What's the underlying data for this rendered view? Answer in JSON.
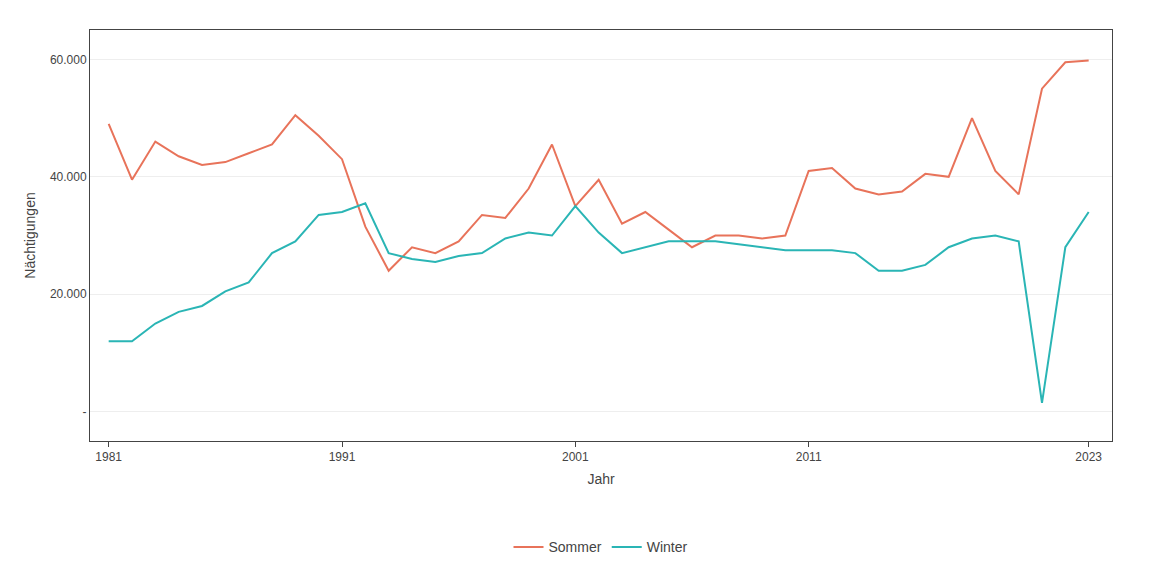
{
  "chart_data": {
    "type": "line",
    "xlabel": "Jahr",
    "ylabel": "Nächtigungen",
    "x": [
      1981,
      1982,
      1983,
      1984,
      1985,
      1986,
      1987,
      1988,
      1989,
      1990,
      1991,
      1992,
      1993,
      1994,
      1995,
      1996,
      1997,
      1998,
      1999,
      2000,
      2001,
      2002,
      2003,
      2004,
      2005,
      2006,
      2007,
      2008,
      2009,
      2010,
      2011,
      2012,
      2013,
      2014,
      2015,
      2016,
      2017,
      2018,
      2019,
      2020,
      2021,
      2022,
      2023
    ],
    "series": [
      {
        "name": "Sommer",
        "color": "#E8735A",
        "values": [
          49000,
          39500,
          46000,
          43500,
          42000,
          42500,
          44000,
          45500,
          50500,
          47000,
          43000,
          31500,
          24000,
          28000,
          27000,
          29000,
          33500,
          33000,
          38000,
          45500,
          35000,
          39500,
          32000,
          34000,
          31000,
          28000,
          30000,
          30000,
          29500,
          30000,
          41000,
          41500,
          38000,
          37000,
          37500,
          40500,
          40000,
          50000,
          41000,
          37000,
          55000,
          59500,
          59800
        ]
      },
      {
        "name": "Winter",
        "color": "#2AB5B5",
        "values": [
          12000,
          12000,
          15000,
          17000,
          18000,
          20500,
          22000,
          27000,
          29000,
          33500,
          34000,
          35500,
          27000,
          26000,
          25500,
          26500,
          27000,
          29500,
          30500,
          30000,
          35000,
          30500,
          27000,
          28000,
          29000,
          29000,
          29000,
          28500,
          28000,
          27500,
          27500,
          27500,
          27000,
          24000,
          24000,
          25000,
          28000,
          29500,
          30000,
          29000,
          1500,
          28000,
          34000
        ]
      }
    ],
    "xlim": [
      1980.2,
      2024
    ],
    "ylim": [
      -5000,
      65000
    ],
    "xticks": [
      1981,
      1991,
      2001,
      2011,
      2023
    ],
    "yticks": [
      {
        "value": 0,
        "label": "-"
      },
      {
        "value": 20000,
        "label": "20.000"
      },
      {
        "value": 40000,
        "label": "40.000"
      },
      {
        "value": 60000,
        "label": "60.000"
      }
    ],
    "grid": true,
    "legend": "bottom"
  }
}
